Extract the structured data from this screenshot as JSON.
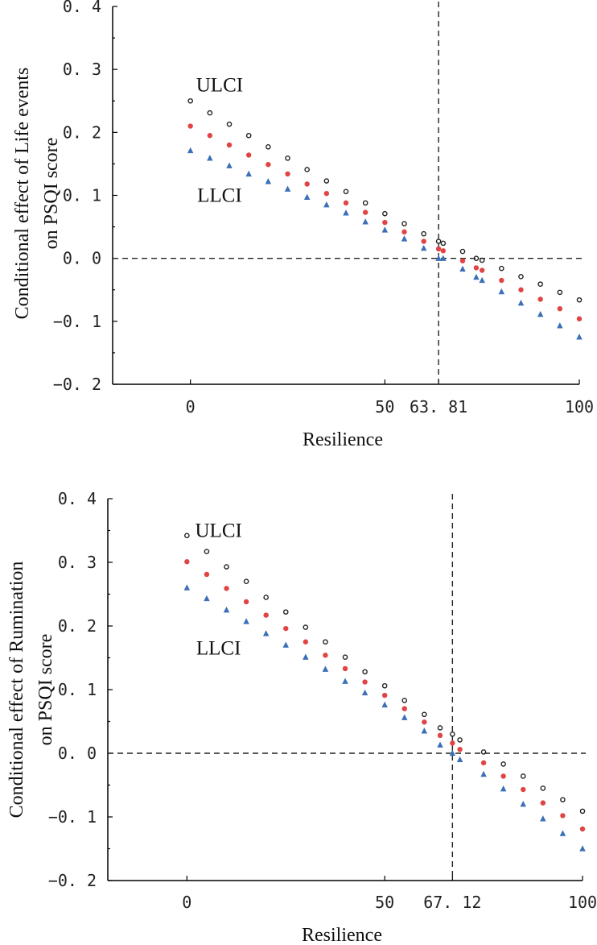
{
  "chart_data": [
    {
      "type": "scatter",
      "title": "",
      "xlabel": "Resilience",
      "ylabel_lines": [
        "Conditional effect of Life events",
        "on PSQI score"
      ],
      "xlim": [
        -20,
        100
      ],
      "ylim": [
        -0.2,
        0.4
      ],
      "x_ticks": [
        0,
        50,
        63.81,
        100
      ],
      "x_tick_labels": [
        "0",
        "50",
        "63. 81",
        "100"
      ],
      "y_ticks": [
        -0.2,
        -0.1,
        0.0,
        0.1,
        0.2,
        0.3,
        0.4
      ],
      "y_tick_labels": [
        "−0. 2",
        "−0. 1",
        "0. 0",
        "0. 1",
        "0. 2",
        "0. 3",
        "0. 4"
      ],
      "reference_lines": {
        "y": 0.0,
        "x": 63.81
      },
      "annotations": [
        {
          "text": "ULCI",
          "x": 7.5,
          "y": 0.275
        },
        {
          "text": "LLCI",
          "x": 7.5,
          "y": 0.1
        }
      ],
      "x": [
        0,
        5,
        10,
        15,
        20,
        25,
        30,
        35,
        40,
        45,
        50,
        55,
        60,
        63.81,
        65,
        70,
        73.5,
        75,
        80,
        85,
        90,
        95,
        100
      ],
      "series": [
        {
          "name": "ULCI",
          "marker": "circle-open",
          "color": "#222222",
          "values": [
            0.25,
            0.231,
            0.213,
            0.195,
            0.177,
            0.159,
            0.141,
            0.123,
            0.106,
            0.088,
            0.071,
            0.055,
            0.039,
            0.027,
            0.024,
            0.011,
            0.0,
            -0.003,
            -0.016,
            -0.029,
            -0.041,
            -0.054,
            -0.066
          ]
        },
        {
          "name": "Effect",
          "marker": "circle-filled",
          "color": "#e04444",
          "values": [
            0.21,
            0.195,
            0.18,
            0.164,
            0.149,
            0.134,
            0.118,
            0.103,
            0.088,
            0.073,
            0.057,
            0.042,
            0.027,
            0.015,
            0.012,
            -0.004,
            -0.015,
            -0.019,
            -0.035,
            -0.05,
            -0.065,
            -0.08,
            -0.096
          ]
        },
        {
          "name": "LLCI",
          "marker": "triangle",
          "color": "#3b6fb6",
          "values": [
            0.171,
            0.159,
            0.147,
            0.134,
            0.122,
            0.11,
            0.097,
            0.085,
            0.072,
            0.058,
            0.045,
            0.031,
            0.016,
            0.0,
            0.0,
            -0.017,
            -0.03,
            -0.035,
            -0.053,
            -0.071,
            -0.089,
            -0.107,
            -0.125
          ]
        }
      ]
    },
    {
      "type": "scatter",
      "title": "",
      "xlabel": "Resilience",
      "ylabel_lines": [
        "Conditional effect of Rumination",
        "on PSQI score"
      ],
      "xlim": [
        -20,
        100
      ],
      "ylim": [
        -0.2,
        0.4
      ],
      "x_ticks": [
        0,
        50,
        67.12,
        100
      ],
      "x_tick_labels": [
        "0",
        "50",
        "67. 12",
        "100"
      ],
      "y_ticks": [
        -0.2,
        -0.1,
        0.0,
        0.1,
        0.2,
        0.3,
        0.4
      ],
      "y_tick_labels": [
        "−0. 2",
        "−0. 1",
        "0. 0",
        "0. 1",
        "0. 2",
        "0. 3",
        "0. 4"
      ],
      "reference_lines": {
        "y": 0.0,
        "x": 67.12
      },
      "annotations": [
        {
          "text": "ULCI",
          "x": 8,
          "y": 0.35
        },
        {
          "text": "LLCI",
          "x": 8,
          "y": 0.165
        }
      ],
      "x": [
        0,
        5,
        10,
        15,
        20,
        25,
        30,
        35,
        40,
        45,
        50,
        55,
        60,
        64,
        67.12,
        69,
        75,
        80,
        85,
        90,
        95,
        100
      ],
      "series": [
        {
          "name": "ULCI",
          "marker": "circle-open",
          "color": "#222222",
          "values": [
            0.342,
            0.317,
            0.293,
            0.27,
            0.245,
            0.222,
            0.198,
            0.175,
            0.151,
            0.128,
            0.106,
            0.083,
            0.061,
            0.04,
            0.03,
            0.021,
            0.002,
            -0.017,
            -0.036,
            -0.055,
            -0.073,
            -0.091
          ]
        },
        {
          "name": "Effect",
          "marker": "circle-filled",
          "color": "#e04444",
          "values": [
            0.301,
            0.281,
            0.259,
            0.238,
            0.217,
            0.196,
            0.175,
            0.154,
            0.133,
            0.112,
            0.091,
            0.07,
            0.049,
            0.028,
            0.016,
            0.006,
            -0.015,
            -0.036,
            -0.057,
            -0.078,
            -0.098,
            -0.119
          ]
        },
        {
          "name": "LLCI",
          "marker": "triangle",
          "color": "#3b6fb6",
          "values": [
            0.26,
            0.243,
            0.225,
            0.207,
            0.188,
            0.17,
            0.151,
            0.132,
            0.113,
            0.095,
            0.076,
            0.056,
            0.035,
            0.013,
            0.0,
            -0.01,
            -0.033,
            -0.056,
            -0.08,
            -0.103,
            -0.126,
            -0.15
          ]
        }
      ]
    }
  ]
}
